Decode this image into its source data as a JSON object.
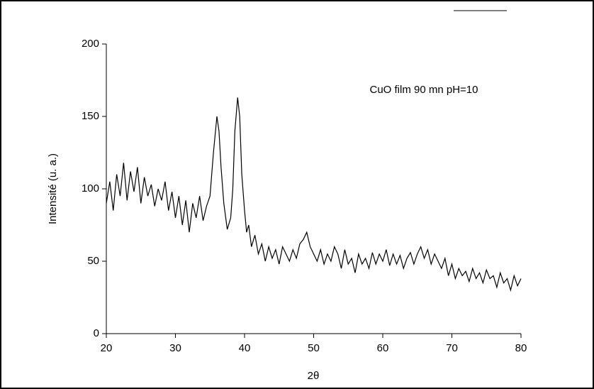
{
  "chart_data": {
    "type": "line",
    "x_label": "2θ",
    "y_label": "Intensité (u. a.)",
    "annotation": "CuO film 90 mn pH=10",
    "color": "#000000",
    "xlim": [
      20,
      80
    ],
    "xticks": [
      20,
      30,
      40,
      50,
      60,
      70,
      80
    ],
    "ylim": [
      0,
      200
    ],
    "yticks": [
      0,
      50,
      100,
      150,
      200
    ],
    "x": [
      20,
      20.5,
      21,
      21.5,
      22,
      22.5,
      23,
      23.5,
      24,
      24.5,
      25,
      25.5,
      26,
      26.5,
      27,
      27.5,
      28,
      28.5,
      29,
      29.5,
      30,
      30.5,
      31,
      31.5,
      32,
      32.5,
      33,
      33.5,
      34,
      34.5,
      35,
      35.5,
      36,
      36.3,
      36.6,
      37,
      37.5,
      38,
      38.3,
      38.6,
      39,
      39.3,
      39.6,
      40,
      40.3,
      40.6,
      41,
      41.5,
      42,
      42.5,
      43,
      43.5,
      44,
      44.5,
      45,
      45.5,
      46,
      46.5,
      47,
      47.5,
      48,
      48.5,
      49,
      49.5,
      50,
      50.5,
      51,
      51.5,
      52,
      52.5,
      53,
      53.5,
      54,
      54.5,
      55,
      55.5,
      56,
      56.5,
      57,
      57.5,
      58,
      58.5,
      59,
      59.5,
      60,
      60.5,
      61,
      61.5,
      62,
      62.5,
      63,
      63.5,
      64,
      64.5,
      65,
      65.5,
      66,
      66.5,
      67,
      67.5,
      68,
      68.5,
      69,
      69.5,
      70,
      70.5,
      71,
      71.5,
      72,
      72.5,
      73,
      73.5,
      74,
      74.5,
      75,
      75.5,
      76,
      76.5,
      77,
      77.5,
      78,
      78.5,
      79,
      79.5,
      80
    ],
    "values": [
      90,
      105,
      85,
      110,
      95,
      118,
      92,
      112,
      98,
      115,
      90,
      108,
      95,
      103,
      88,
      100,
      92,
      105,
      85,
      98,
      80,
      95,
      75,
      92,
      70,
      90,
      80,
      95,
      78,
      88,
      95,
      125,
      150,
      140,
      115,
      90,
      72,
      80,
      100,
      140,
      163,
      150,
      110,
      85,
      70,
      75,
      60,
      68,
      55,
      62,
      50,
      60,
      52,
      58,
      48,
      60,
      55,
      50,
      58,
      52,
      62,
      65,
      70,
      60,
      55,
      50,
      58,
      48,
      55,
      50,
      60,
      55,
      45,
      58,
      48,
      52,
      42,
      55,
      48,
      52,
      45,
      56,
      48,
      55,
      50,
      58,
      47,
      55,
      48,
      54,
      45,
      52,
      56,
      48,
      55,
      60,
      52,
      58,
      48,
      55,
      50,
      45,
      52,
      40,
      48,
      38,
      45,
      40,
      43,
      36,
      45,
      38,
      42,
      35,
      44,
      38,
      40,
      32,
      42,
      35,
      38,
      30,
      40,
      33,
      38
    ]
  }
}
